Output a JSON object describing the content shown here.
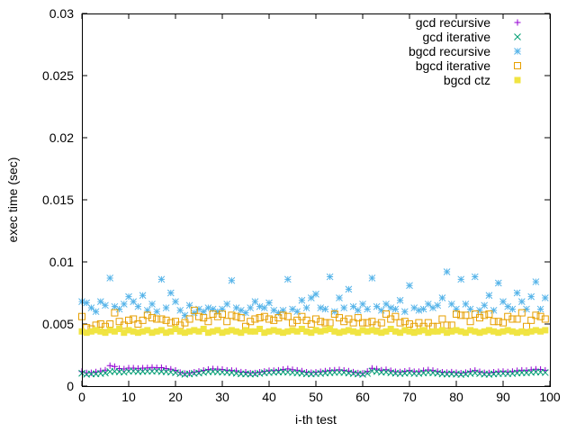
{
  "chart_data": {
    "type": "scatter",
    "title": "",
    "xlabel": "i-th test",
    "ylabel": "exec time (sec)",
    "xlim": [
      0,
      100
    ],
    "ylim": [
      0,
      0.03
    ],
    "xticks": [
      "0",
      "10",
      "20",
      "30",
      "40",
      "50",
      "60",
      "70",
      "80",
      "90",
      "100"
    ],
    "yticks": [
      "0",
      "0.005",
      "0.01",
      "0.015",
      "0.02",
      "0.025",
      "0.03"
    ],
    "grid": false,
    "legend": "top-right",
    "x": [
      0,
      1,
      2,
      3,
      4,
      5,
      6,
      7,
      8,
      9,
      10,
      11,
      12,
      13,
      14,
      15,
      16,
      17,
      18,
      19,
      20,
      21,
      22,
      23,
      24,
      25,
      26,
      27,
      28,
      29,
      30,
      31,
      32,
      33,
      34,
      35,
      36,
      37,
      38,
      39,
      40,
      41,
      42,
      43,
      44,
      45,
      46,
      47,
      48,
      49,
      50,
      51,
      52,
      53,
      54,
      55,
      56,
      57,
      58,
      59,
      60,
      61,
      62,
      63,
      64,
      65,
      66,
      67,
      68,
      69,
      70,
      71,
      72,
      73,
      74,
      75,
      76,
      77,
      78,
      79,
      80,
      81,
      82,
      83,
      84,
      85,
      86,
      87,
      88,
      89,
      90,
      91,
      92,
      93,
      94,
      95,
      96,
      97,
      98,
      99
    ],
    "series": [
      {
        "name": "gcd recursive",
        "marker": "plus",
        "color": "#9400d3",
        "values": [
          0.00118,
          0.00107,
          0.00108,
          0.00114,
          0.00122,
          0.00129,
          0.00165,
          0.00158,
          0.00141,
          0.00138,
          0.00145,
          0.00145,
          0.00142,
          0.00145,
          0.00147,
          0.0015,
          0.00148,
          0.00149,
          0.00141,
          0.00136,
          0.00127,
          0.0011,
          0.00102,
          0.00104,
          0.00112,
          0.00119,
          0.00127,
          0.00134,
          0.00139,
          0.00137,
          0.00134,
          0.00128,
          0.00126,
          0.00123,
          0.00113,
          0.00112,
          0.00105,
          0.00106,
          0.00112,
          0.00119,
          0.00124,
          0.00125,
          0.00128,
          0.00134,
          0.00139,
          0.00132,
          0.00128,
          0.00121,
          0.00112,
          0.00109,
          0.00111,
          0.00116,
          0.00121,
          0.00126,
          0.00129,
          0.00131,
          0.00127,
          0.00121,
          0.00113,
          0.00106,
          0.00103,
          0.00119,
          0.00143,
          0.00138,
          0.00129,
          0.00132,
          0.00124,
          0.00116,
          0.00114,
          0.0012,
          0.00126,
          0.00117,
          0.00117,
          0.00125,
          0.0013,
          0.00126,
          0.00118,
          0.00112,
          0.0011,
          0.00113,
          0.00109,
          0.00105,
          0.0011,
          0.00119,
          0.00126,
          0.00116,
          0.00108,
          0.00107,
          0.00112,
          0.00116,
          0.00118,
          0.00114,
          0.00118,
          0.00124,
          0.00128,
          0.00126,
          0.00131,
          0.00136,
          0.00134,
          0.00128
        ]
      },
      {
        "name": "gcd iterative",
        "marker": "cross",
        "color": "#009e73",
        "values": [
          0.00103,
          0.00095,
          0.00098,
          0.00099,
          0.00101,
          0.00105,
          0.00117,
          0.00118,
          0.00115,
          0.00112,
          0.00119,
          0.0012,
          0.00117,
          0.00118,
          0.00119,
          0.00119,
          0.00121,
          0.00117,
          0.00116,
          0.00112,
          0.00108,
          0.001,
          0.00095,
          0.00098,
          0.00102,
          0.00105,
          0.0011,
          0.00115,
          0.00117,
          0.00114,
          0.00112,
          0.0011,
          0.00108,
          0.00103,
          0.00099,
          0.00098,
          0.00097,
          0.00098,
          0.00102,
          0.00107,
          0.00109,
          0.00111,
          0.00113,
          0.00114,
          0.00112,
          0.00109,
          0.00106,
          0.00103,
          0.00099,
          0.00098,
          0.001,
          0.00102,
          0.00105,
          0.00108,
          0.0011,
          0.00111,
          0.00109,
          0.00105,
          0.00101,
          0.00098,
          0.00095,
          0.00102,
          0.00121,
          0.00118,
          0.00111,
          0.00113,
          0.00107,
          0.00103,
          0.00101,
          0.00103,
          0.00107,
          0.00101,
          0.00102,
          0.00106,
          0.00109,
          0.00107,
          0.00103,
          0.00098,
          0.00097,
          0.00098,
          0.00096,
          0.00094,
          0.00097,
          0.00101,
          0.00106,
          0.001,
          0.00096,
          0.00095,
          0.00098,
          0.001,
          0.00102,
          0.001,
          0.00101,
          0.00105,
          0.00108,
          0.00107,
          0.0011,
          0.00113,
          0.00112,
          0.00109
        ]
      },
      {
        "name": "bgcd recursive",
        "marker": "star",
        "color": "#56b4e9",
        "values": [
          0.0068,
          0.0067,
          0.0063,
          0.006,
          0.0068,
          0.0065,
          0.0087,
          0.0064,
          0.0062,
          0.0066,
          0.0072,
          0.0068,
          0.0064,
          0.0073,
          0.0061,
          0.0066,
          0.006,
          0.0086,
          0.0063,
          0.0075,
          0.0068,
          0.0061,
          0.0057,
          0.0065,
          0.0059,
          0.0062,
          0.006,
          0.0063,
          0.0062,
          0.006,
          0.0062,
          0.0066,
          0.0085,
          0.0063,
          0.0061,
          0.0059,
          0.0063,
          0.0068,
          0.0064,
          0.0063,
          0.0067,
          0.0061,
          0.0059,
          0.0061,
          0.0086,
          0.0062,
          0.006,
          0.0069,
          0.0063,
          0.0071,
          0.0074,
          0.0063,
          0.0062,
          0.0088,
          0.006,
          0.0071,
          0.0063,
          0.0078,
          0.0064,
          0.0061,
          0.0066,
          0.0062,
          0.0087,
          0.0064,
          0.0061,
          0.0066,
          0.0063,
          0.0062,
          0.0069,
          0.006,
          0.0081,
          0.0063,
          0.0061,
          0.0062,
          0.0066,
          0.0063,
          0.0065,
          0.0071,
          0.0092,
          0.0066,
          0.0062,
          0.0086,
          0.0066,
          0.0062,
          0.0088,
          0.0061,
          0.0065,
          0.0073,
          0.0061,
          0.0083,
          0.0068,
          0.0064,
          0.0062,
          0.0075,
          0.0068,
          0.0062,
          0.0072,
          0.0084,
          0.0062,
          0.0071
        ]
      },
      {
        "name": "bgcd iterative",
        "marker": "box",
        "color": "#e69f00",
        "values": [
          0.0056,
          0.0047,
          0.0046,
          0.0049,
          0.005,
          0.0048,
          0.005,
          0.0059,
          0.0052,
          0.0049,
          0.0053,
          0.0054,
          0.005,
          0.0053,
          0.0057,
          0.0055,
          0.0054,
          0.0054,
          0.0053,
          0.0051,
          0.0052,
          0.0049,
          0.0051,
          0.0054,
          0.0061,
          0.0056,
          0.0055,
          0.0052,
          0.0058,
          0.0056,
          0.0058,
          0.0052,
          0.0057,
          0.0056,
          0.0055,
          0.0048,
          0.0052,
          0.0054,
          0.0055,
          0.0056,
          0.0054,
          0.0053,
          0.0055,
          0.0057,
          0.0056,
          0.0051,
          0.0053,
          0.0056,
          0.0053,
          0.005,
          0.0054,
          0.0052,
          0.0051,
          0.0051,
          0.0058,
          0.0055,
          0.0052,
          0.0054,
          0.0051,
          0.0055,
          0.0051,
          0.0051,
          0.0052,
          0.0049,
          0.0051,
          0.0058,
          0.0054,
          0.0056,
          0.0051,
          0.0052,
          0.005,
          0.0048,
          0.0051,
          0.0048,
          0.0051,
          0.0048,
          0.0048,
          0.0054,
          0.0049,
          0.0049,
          0.0058,
          0.0057,
          0.0057,
          0.0052,
          0.0058,
          0.0055,
          0.0057,
          0.0058,
          0.0052,
          0.0052,
          0.0051,
          0.0056,
          0.0054,
          0.0054,
          0.0059,
          0.0048,
          0.0053,
          0.0057,
          0.0056,
          0.0054
        ]
      },
      {
        "name": "bgcd ctz",
        "marker": "filled-box",
        "color": "#f0e442",
        "values": [
          0.0044,
          0.0043,
          0.0044,
          0.0045,
          0.0044,
          0.0043,
          0.0045,
          0.0044,
          0.0046,
          0.0043,
          0.0045,
          0.0044,
          0.0043,
          0.0044,
          0.0045,
          0.0043,
          0.0044,
          0.0045,
          0.0043,
          0.0044,
          0.0046,
          0.0044,
          0.0043,
          0.0044,
          0.0045,
          0.0044,
          0.0046,
          0.0043,
          0.0044,
          0.0045,
          0.0043,
          0.0044,
          0.0045,
          0.0044,
          0.0043,
          0.0045,
          0.0044,
          0.0044,
          0.0046,
          0.0043,
          0.0044,
          0.0045,
          0.0044,
          0.0043,
          0.0044,
          0.0045,
          0.0044,
          0.0046,
          0.0044,
          0.0043,
          0.0045,
          0.0044,
          0.0045,
          0.0046,
          0.0044,
          0.0043,
          0.0044,
          0.0045,
          0.0044,
          0.0043,
          0.0045,
          0.0044,
          0.0045,
          0.0044,
          0.0043,
          0.0044,
          0.0046,
          0.0044,
          0.0043,
          0.0045,
          0.0044,
          0.0043,
          0.0044,
          0.0045,
          0.0043,
          0.0044,
          0.0044,
          0.0045,
          0.0043,
          0.0044,
          0.0045,
          0.0044,
          0.0043,
          0.0045,
          0.0044,
          0.0043,
          0.0044,
          0.0045,
          0.0044,
          0.0043,
          0.0044,
          0.0045,
          0.0044,
          0.0043,
          0.0044,
          0.0043,
          0.0044,
          0.0045,
          0.0044,
          0.0045
        ]
      }
    ]
  }
}
